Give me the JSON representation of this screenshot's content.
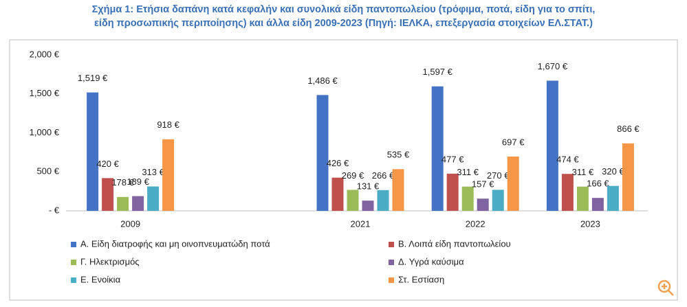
{
  "chart_data": {
    "type": "bar",
    "title": [
      "Σχήμα 1: Ετήσια δαπάνη κατά κεφαλήν και συνολικά είδη παντοπωλείου (τρόφιμα, ποτά, είδη για το σπίτι,",
      "είδη προσωπικής περιποίησης) και άλλα είδη 2009-2023 (Πηγή: ΙΕΛΚΑ, επεξεργασία στοιχείων ΕΛ.ΣΤΑΤ.)"
    ],
    "categories": [
      "2009",
      null,
      "2021",
      "2022",
      "2023"
    ],
    "series": [
      {
        "name": "Α. Είδη διατροφής και μη οινοπνευματώδη ποτά",
        "color": "#4472c4",
        "values": [
          1519,
          null,
          1486,
          1597,
          1670
        ],
        "value_labels": [
          "1,519 €",
          null,
          "1,486 €",
          "1,597 €",
          "1,670 €"
        ]
      },
      {
        "name": "Β. Λοιπά είδη παντοπωλείου",
        "color": "#c0504d",
        "values": [
          420,
          null,
          426,
          477,
          474
        ],
        "value_labels": [
          "420 €",
          null,
          "426 €",
          "477 €",
          "474 €"
        ]
      },
      {
        "name": "Γ. Ηλεκτρισμός",
        "color": "#9bbb59",
        "values": [
          178,
          null,
          269,
          311,
          311
        ],
        "value_labels": [
          "178 €",
          null,
          "269 €",
          "311 €",
          "311 €"
        ]
      },
      {
        "name": "Δ. Υγρά καύσιμα",
        "color": "#8064a2",
        "values": [
          189,
          null,
          131,
          157,
          166
        ],
        "value_labels": [
          "189 €",
          null,
          "131 €",
          "157 €",
          "166 €"
        ]
      },
      {
        "name": "Ε. Ενοίκια",
        "color": "#4bacc6",
        "values": [
          313,
          null,
          266,
          270,
          320
        ],
        "value_labels": [
          "313 €",
          null,
          "266 €",
          "270 €",
          "320 €"
        ]
      },
      {
        "name": "Στ. Εστίαση",
        "color": "#f79646",
        "values": [
          918,
          null,
          535,
          697,
          866
        ],
        "value_labels": [
          "918 €",
          null,
          "535 €",
          "697 €",
          "866 €"
        ]
      }
    ],
    "ylim": [
      0,
      2000
    ],
    "yticks": [
      {
        "value": 0,
        "label": "- €"
      },
      {
        "value": 500,
        "label": "500 €"
      },
      {
        "value": 1000,
        "label": "1,000 €"
      },
      {
        "value": 1500,
        "label": "1,500 €"
      },
      {
        "value": 2000,
        "label": "2,000 €"
      }
    ],
    "grid": false
  }
}
